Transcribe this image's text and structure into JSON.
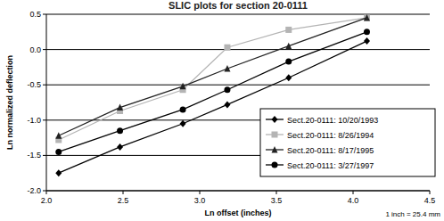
{
  "chart_data": {
    "type": "line",
    "title": "SLIC plots for section 20-0111",
    "x_label": "Ln offset (inches)",
    "y_label": "Ln normalized deflection",
    "annotation": "1 inch = 25.4 mm",
    "x": [
      2.08,
      2.48,
      2.89,
      3.18,
      3.58,
      4.09
    ],
    "series": [
      {
        "name": "Sect.20-0111: 10/20/1993",
        "color": "#000000",
        "marker": "diamond",
        "values": [
          -1.75,
          -1.38,
          -1.05,
          -0.78,
          -0.4,
          0.12
        ]
      },
      {
        "name": "Sect.20-0111: 8/26/1994",
        "color": "#b4b4b4",
        "marker": "square",
        "values": [
          -1.28,
          -0.87,
          -0.57,
          0.03,
          0.28,
          0.45
        ]
      },
      {
        "name": "Sect.20-0111: 8/17/1995",
        "color": "#222222",
        "marker": "triangle",
        "values": [
          -1.22,
          -0.82,
          -0.52,
          -0.27,
          0.05,
          0.45
        ]
      },
      {
        "name": "Sect.20-0111: 3/27/1997",
        "color": "#000000",
        "marker": "circle",
        "values": [
          -1.45,
          -1.15,
          -0.85,
          -0.57,
          -0.17,
          0.25
        ]
      }
    ],
    "xlim": [
      2,
      4.5
    ],
    "xticks": [
      {
        "value": 2,
        "label": "2.0"
      },
      2.5,
      {
        "value": 3,
        "label": "3.0"
      },
      3.5,
      {
        "value": 4,
        "label": "4.0"
      },
      4.5
    ],
    "ylim": [
      -2,
      0.5
    ],
    "yticks": [
      {
        "value": -2,
        "label": "-2.0"
      },
      -1.5,
      {
        "value": -1,
        "label": "-1.0"
      },
      -0.5,
      {
        "value": 0,
        "label": "0.0"
      },
      0.5
    ],
    "grid": true,
    "legend": "lower right"
  }
}
